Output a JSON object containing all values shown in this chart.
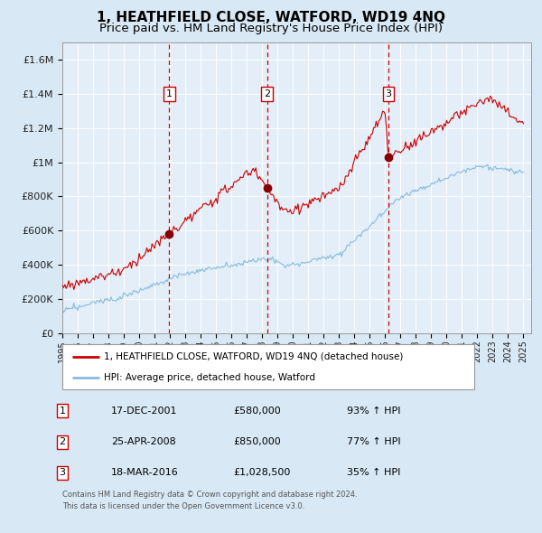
{
  "title": "1, HEATHFIELD CLOSE, WATFORD, WD19 4NQ",
  "subtitle": "Price paid vs. HM Land Registry's House Price Index (HPI)",
  "title_fontsize": 11,
  "subtitle_fontsize": 9.5,
  "bg_color": "#d8e8f4",
  "plot_bg_color": "#e4eef8",
  "grid_color": "#ffffff",
  "red_line_color": "#cc0000",
  "blue_line_color": "#88bbdd",
  "sale_marker_color": "#880000",
  "dashed_line_color": "#cc0000",
  "ylabel_color": "#222222",
  "ylim": [
    0,
    1700000
  ],
  "yticks": [
    0,
    200000,
    400000,
    600000,
    800000,
    1000000,
    1200000,
    1400000,
    1600000
  ],
  "ytick_labels": [
    "£0",
    "£200K",
    "£400K",
    "£600K",
    "£800K",
    "£1M",
    "£1.2M",
    "£1.4M",
    "£1.6M"
  ],
  "sales": [
    {
      "label": "1",
      "date_str": "17-DEC-2001",
      "year": 2001.958,
      "price": 580000,
      "pct": "93%",
      "dir": "↑"
    },
    {
      "label": "2",
      "date_str": "25-APR-2008",
      "year": 2008.317,
      "price": 850000,
      "pct": "77%",
      "dir": "↑"
    },
    {
      "label": "3",
      "date_str": "18-MAR-2016",
      "year": 2016.208,
      "price": 1028500,
      "pct": "35%",
      "dir": "↑"
    }
  ],
  "legend_entries": [
    "1, HEATHFIELD CLOSE, WATFORD, WD19 4NQ (detached house)",
    "HPI: Average price, detached house, Watford"
  ],
  "footnote1": "Contains HM Land Registry data © Crown copyright and database right 2024.",
  "footnote2": "This data is licensed under the Open Government Licence v3.0."
}
